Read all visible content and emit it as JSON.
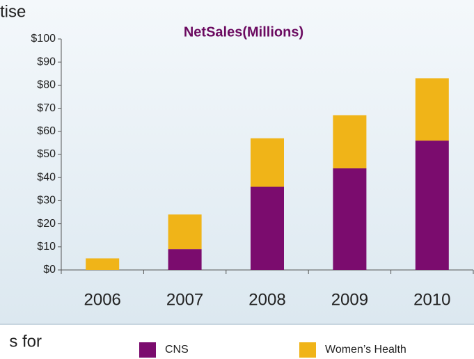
{
  "fragments": [
    "tise",
    "s for"
  ],
  "chart_data": {
    "type": "stacked_bar",
    "title": "NetSales(Millions)",
    "categories": [
      "2006",
      "2007",
      "2008",
      "2009",
      "2010"
    ],
    "series": [
      {
        "name": "CNS",
        "color": "#7b0c6e",
        "values": [
          0,
          9,
          36,
          44,
          56
        ]
      },
      {
        "name": "Women’s Health",
        "color": "#f0b418",
        "values": [
          5,
          15,
          21,
          23,
          27
        ]
      }
    ],
    "ylim": [
      0,
      100
    ],
    "yticks": [
      {
        "value": 0,
        "label": "$0"
      },
      {
        "value": 10,
        "label": "$10"
      },
      {
        "value": 20,
        "label": "$20"
      },
      {
        "value": 30,
        "label": "$30"
      },
      {
        "value": 40,
        "label": "$40"
      },
      {
        "value": 50,
        "label": "$50"
      },
      {
        "value": 60,
        "label": "$60"
      },
      {
        "value": 70,
        "label": "$70"
      },
      {
        "value": 80,
        "label": "$80"
      },
      {
        "value": 90,
        "label": "$90"
      },
      {
        "value": 100,
        "label": "$100"
      }
    ],
    "legend": "bottom"
  }
}
